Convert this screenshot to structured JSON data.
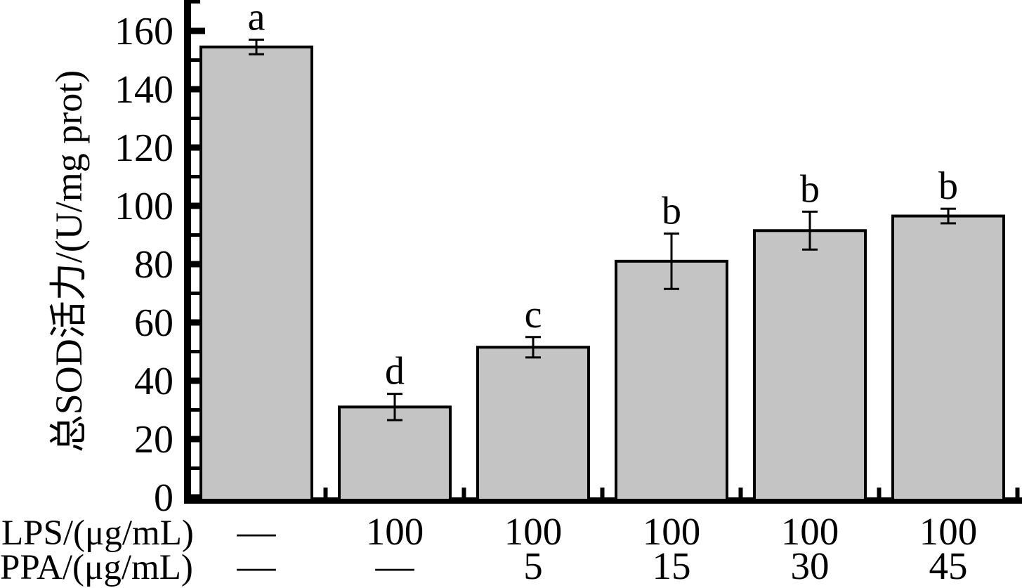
{
  "chart_data": {
    "type": "bar",
    "title": "",
    "ylabel": "总SOD活力/(U/mg prot)",
    "yticks": [
      0,
      20,
      40,
      60,
      80,
      100,
      120,
      140,
      160
    ],
    "y_minor_step": 10,
    "ylim": [
      0,
      170
    ],
    "values": [
      154.5,
      31,
      51.5,
      81,
      91.5,
      96.5
    ],
    "errors": [
      2.5,
      4.5,
      3.5,
      9.5,
      6.5,
      2.5
    ],
    "sig_letters": [
      "a",
      "d",
      "c",
      "b",
      "b",
      "b"
    ],
    "bar_fill": "#c4c4c4",
    "bar_border": "#000000",
    "axis_color": "#000000",
    "grid": "off",
    "legend": "none",
    "x_rows": [
      {
        "label": "LPS/(μg/mL)",
        "values": [
          "—",
          "100",
          "100",
          "100",
          "100",
          "100"
        ]
      },
      {
        "label": "PPA/(μg/mL)",
        "values": [
          "—",
          "—",
          "5",
          "15",
          "30",
          "45"
        ]
      }
    ]
  }
}
